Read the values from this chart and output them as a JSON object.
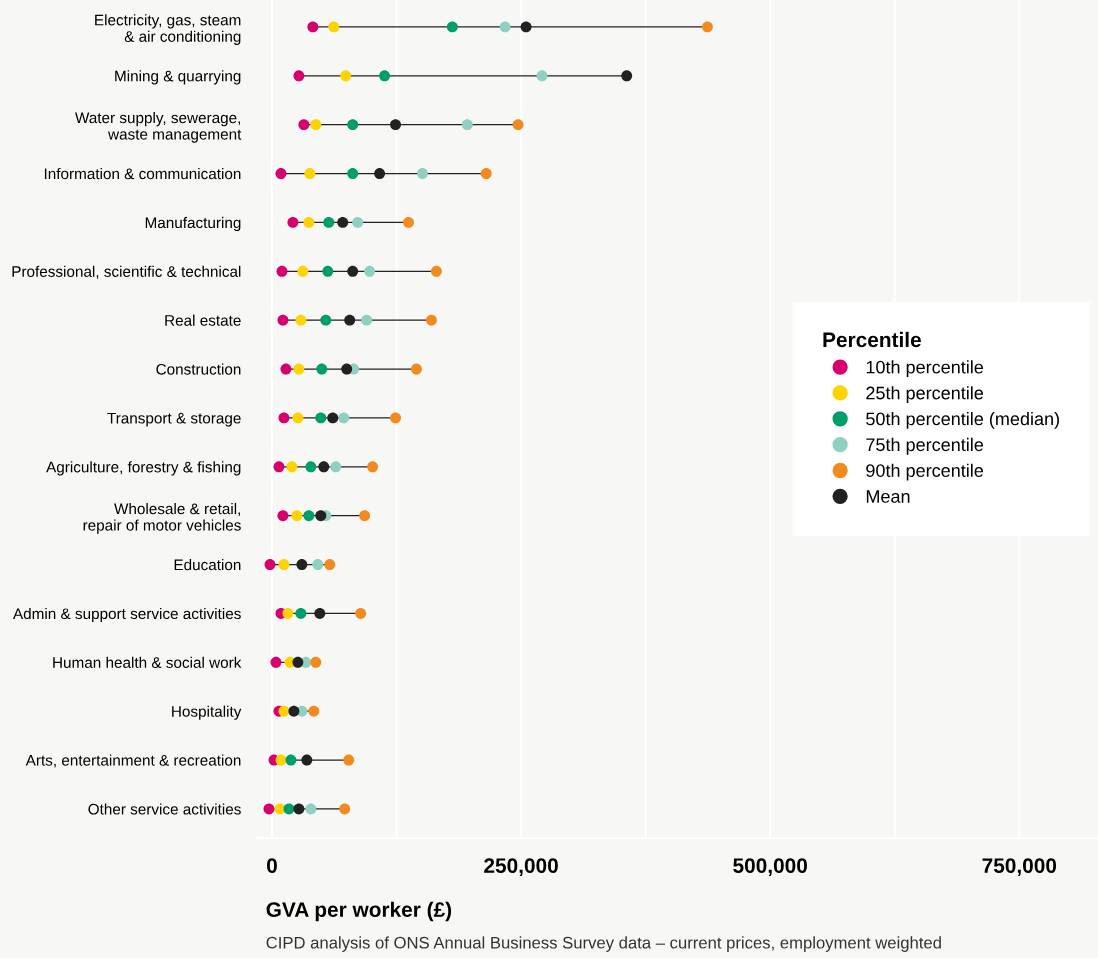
{
  "chart_data": {
    "type": "scatter",
    "orientation": "horizontal",
    "categories": [
      "Electricity, gas, steam\n& air conditioning",
      "Mining & quarrying",
      "Water supply, sewerage,\nwaste management",
      "Information & communication",
      "Manufacturing",
      "Professional, scientific & technical",
      "Real estate",
      "Construction",
      "Transport & storage",
      "Agriculture, forestry & fishing",
      "Wholesale & retail,\nrepair of motor vehicles",
      "Education",
      "Admin & support service activities",
      "Human health & social work",
      "Hospitality",
      "Arts, entertainment & recreation",
      "Other service activities"
    ],
    "series": [
      {
        "name": "10th percentile",
        "color": "#d6006f",
        "values": [
          41000,
          27000,
          32000,
          9000,
          21000,
          10000,
          11000,
          14000,
          12000,
          7000,
          11000,
          -2000,
          9000,
          4000,
          7000,
          2000,
          -3000
        ]
      },
      {
        "name": "25th percentile",
        "color": "#ffd200",
        "values": [
          62000,
          74000,
          44000,
          38000,
          37000,
          31000,
          29000,
          27000,
          26000,
          20000,
          25000,
          12000,
          16000,
          18000,
          12000,
          9000,
          8000
        ]
      },
      {
        "name": "50th percentile (median)",
        "color": "#009e6b",
        "values": [
          181000,
          113000,
          81000,
          81000,
          57000,
          56000,
          54000,
          50000,
          49000,
          39000,
          37000,
          null,
          29000,
          null,
          null,
          19000,
          17000
        ]
      },
      {
        "name": "75th percentile",
        "color": "#8fd0c2",
        "values": [
          234000,
          271000,
          196000,
          151000,
          86000,
          98000,
          95000,
          82000,
          72000,
          64000,
          54000,
          46000,
          null,
          34000,
          30000,
          null,
          39000
        ]
      },
      {
        "name": "90th percentile",
        "color": "#f28a1f",
        "values": [
          437000,
          null,
          247000,
          215000,
          137000,
          165000,
          160000,
          145000,
          124000,
          101000,
          93000,
          58000,
          89000,
          44000,
          42000,
          77000,
          73000
        ]
      },
      {
        "name": "Mean",
        "color": "#222222",
        "values": [
          255000,
          356000,
          124000,
          108000,
          71000,
          81000,
          78000,
          75000,
          61000,
          52000,
          49000,
          30000,
          48000,
          26000,
          22000,
          35000,
          27000
        ]
      }
    ],
    "xlim": [
      -14000,
      829000
    ],
    "xticks": [
      {
        "value": 0,
        "label": "0"
      },
      {
        "value": 125000,
        "label": null
      },
      {
        "value": 250000,
        "label": "250,000"
      },
      {
        "value": 375000,
        "label": null
      },
      {
        "value": 500000,
        "label": "500,000"
      },
      {
        "value": 625000,
        "label": null
      },
      {
        "value": 750000,
        "label": "750,000"
      }
    ],
    "xlabel": "GVA per worker (£)",
    "legend_title": "Percentile",
    "legend": "right",
    "grid": "x",
    "marker": "circle",
    "annotations": [
      "CIPD analysis of ONS Annual Business Survey data – current prices, employment weighted"
    ]
  }
}
